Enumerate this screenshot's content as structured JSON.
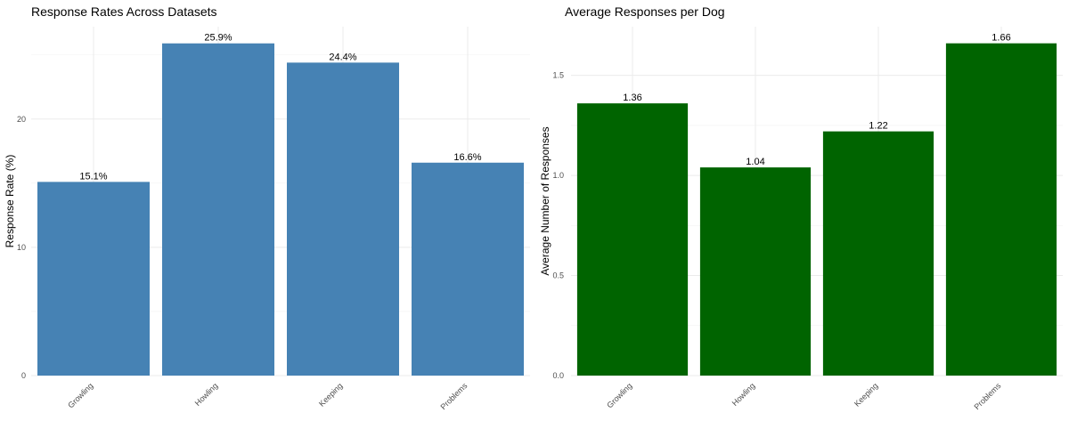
{
  "chart_data": [
    {
      "type": "bar",
      "title": "Response Rates Across Datasets",
      "xlabel": "",
      "ylabel": "Response Rate (%)",
      "categories": [
        "Growling",
        "Howling",
        "Keeping",
        "Problems"
      ],
      "values": [
        15.1,
        25.9,
        24.4,
        16.6
      ],
      "data_labels": [
        "15.1%",
        "25.9%",
        "24.4%",
        "16.6%"
      ],
      "ylim": [
        0,
        27.2
      ],
      "yticks": [
        0,
        10,
        20
      ],
      "ytick_labels": [
        "0",
        "10",
        "20"
      ],
      "grid": true,
      "bar_color": "#4682B4"
    },
    {
      "type": "bar",
      "title": "Average Responses per Dog",
      "xlabel": "",
      "ylabel": "Average Number of Responses",
      "categories": [
        "Growling",
        "Howling",
        "Keeping",
        "Problems"
      ],
      "values": [
        1.36,
        1.04,
        1.22,
        1.66
      ],
      "data_labels": [
        "1.36",
        "1.04",
        "1.22",
        "1.66"
      ],
      "ylim": [
        0,
        1.743
      ],
      "yticks": [
        0,
        0.5,
        1.0,
        1.5
      ],
      "ytick_labels": [
        "0.0",
        "0.5",
        "1.0",
        "1.5"
      ],
      "grid": true,
      "bar_color": "#006400"
    }
  ]
}
